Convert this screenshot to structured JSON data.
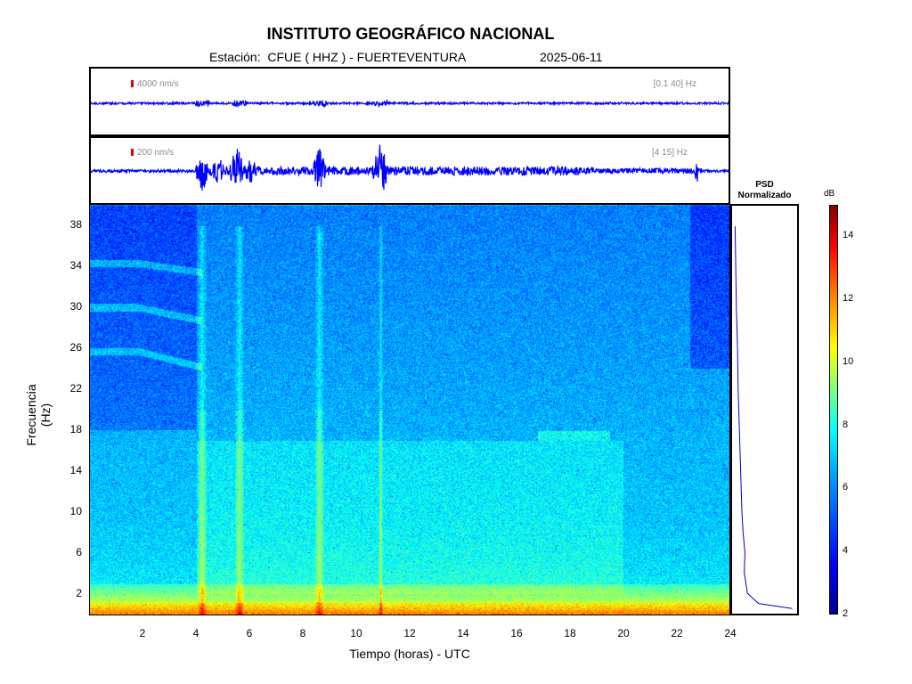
{
  "header": {
    "title": "INSTITUTO GEOGRÁFICO NACIONAL",
    "station_label": "Estación:  CFUE ( HHZ ) - FUERTEVENTURA",
    "date": "2025-06-11"
  },
  "traces": [
    {
      "scale_label": "4000 nm/s",
      "band_label": "[0.1 40] Hz",
      "color": "#0000ff"
    },
    {
      "scale_label": "200 nm/s",
      "band_label": "[4 15] Hz",
      "color": "#0000ff"
    }
  ],
  "psd": {
    "title_line1": "PSD",
    "title_line2": "Normalizado"
  },
  "colorbar": {
    "unit": "dB",
    "ticks": [
      "2",
      "4",
      "6",
      "8",
      "10",
      "12",
      "14"
    ],
    "range": [
      2,
      15
    ]
  },
  "chart_data": {
    "type": "heatmap",
    "title": "INSTITUTO GEOGRÁFICO NACIONAL",
    "xlabel": "Tiempo (horas) - UTC",
    "ylabel": "Frecuencia  (Hz)",
    "xlim": [
      0,
      24
    ],
    "ylim": [
      0,
      40
    ],
    "x_ticks": [
      "2",
      "4",
      "6",
      "8",
      "10",
      "12",
      "14",
      "16",
      "18",
      "20",
      "22",
      "24"
    ],
    "y_ticks": [
      "2",
      "6",
      "10",
      "14",
      "18",
      "22",
      "26",
      "30",
      "34",
      "38"
    ],
    "colormap": "jet",
    "color_unit": "dB",
    "color_range": [
      2,
      15
    ],
    "energy_bursts_hours": [
      4.2,
      5.6,
      8.6,
      10.9
    ],
    "psd_normalized": {
      "freq_hz": [
        0.5,
        1,
        2,
        4,
        6,
        8,
        10,
        14,
        18,
        22,
        26,
        30,
        34,
        38
      ],
      "value": [
        0.95,
        0.4,
        0.22,
        0.17,
        0.18,
        0.15,
        0.13,
        0.11,
        0.09,
        0.07,
        0.06,
        0.04,
        0.03,
        0.02
      ]
    }
  }
}
